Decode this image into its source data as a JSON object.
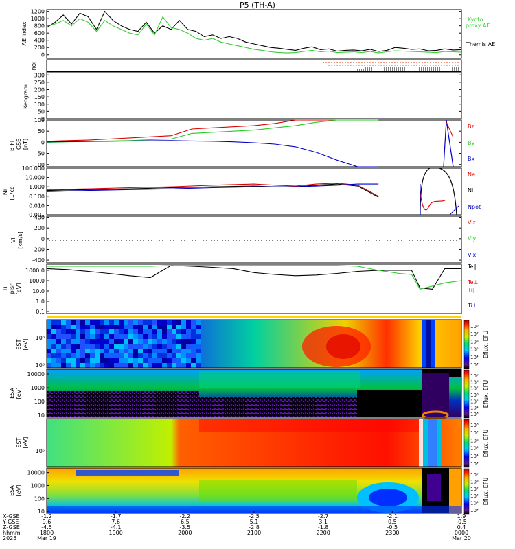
{
  "title": "P5 (TH-A)",
  "colors": {
    "black": "#000000",
    "red": "#dd0000",
    "green": "#22cc22",
    "blue": "#0000cc",
    "ae_green": "#33cc33",
    "yellow": "#ffd400"
  },
  "chart_data": [
    {
      "type": "line",
      "panel": "ae",
      "ylabel": "AE index",
      "ylim": [
        -100,
        1250
      ],
      "yticks": [
        "1200",
        "1000",
        "800",
        "600",
        "400",
        "200",
        "0"
      ],
      "ytick_values": [
        1200,
        1000,
        800,
        600,
        400,
        200,
        0
      ],
      "legend": [
        {
          "label": "Kyoto proxy AE",
          "color": "#33cc33"
        },
        {
          "label": "Themis AE",
          "color": "#000000"
        }
      ],
      "series": [
        {
          "name": "Themis AE",
          "color": "#000000",
          "x": [
            0,
            0.02,
            0.04,
            0.06,
            0.08,
            0.1,
            0.12,
            0.14,
            0.16,
            0.18,
            0.2,
            0.22,
            0.24,
            0.26,
            0.28,
            0.3,
            0.32,
            0.34,
            0.36,
            0.38,
            0.4,
            0.42,
            0.44,
            0.46,
            0.48,
            0.5,
            0.52,
            0.54,
            0.56,
            0.58,
            0.6,
            0.62,
            0.64,
            0.66,
            0.68,
            0.7,
            0.72,
            0.74,
            0.76,
            0.78,
            0.8,
            0.82,
            0.84,
            0.86,
            0.88,
            0.9,
            0.92,
            0.94,
            0.96,
            0.98,
            1.0
          ],
          "values": [
            750,
            900,
            1100,
            850,
            1150,
            1050,
            700,
            1200,
            950,
            800,
            700,
            650,
            900,
            600,
            800,
            700,
            950,
            700,
            650,
            500,
            550,
            450,
            500,
            450,
            350,
            300,
            250,
            200,
            180,
            150,
            120,
            180,
            220,
            140,
            160,
            100,
            120,
            130,
            110,
            150,
            90,
            120,
            200,
            180,
            150,
            160,
            110,
            120,
            160,
            130,
            140
          ]
        },
        {
          "name": "Kyoto proxy AE",
          "color": "#33cc33",
          "x": [
            0,
            0.02,
            0.04,
            0.06,
            0.08,
            0.1,
            0.12,
            0.14,
            0.16,
            0.18,
            0.2,
            0.22,
            0.24,
            0.26,
            0.28,
            0.3,
            0.32,
            0.34,
            0.36,
            0.38,
            0.4,
            0.42,
            0.44,
            0.46,
            0.48,
            0.5,
            0.52,
            0.54,
            0.56,
            0.58,
            0.6,
            0.62,
            0.64,
            0.66,
            0.68,
            0.7,
            0.72,
            0.74,
            0.76,
            0.78,
            0.8,
            0.82,
            0.84,
            0.86,
            0.88,
            0.9,
            0.92,
            0.94,
            0.96,
            0.98,
            1.0
          ],
          "values": [
            800,
            850,
            950,
            800,
            1000,
            900,
            650,
            950,
            800,
            700,
            600,
            550,
            850,
            550,
            1050,
            750,
            700,
            600,
            450,
            400,
            450,
            350,
            300,
            250,
            200,
            150,
            120,
            80,
            60,
            50,
            60,
            90,
            120,
            80,
            100,
            60,
            70,
            80,
            60,
            90,
            50,
            80,
            110,
            100,
            90,
            80,
            70,
            60,
            90,
            80,
            70
          ]
        }
      ]
    },
    {
      "type": "line",
      "panel": "roi",
      "ylabel": "ROI",
      "note": "dashed flag lines in the last quarter of the time range"
    },
    {
      "type": "heatmap",
      "panel": "keogram",
      "ylabel": "Keogram",
      "yticks": [
        "300",
        "250",
        "200",
        "150",
        "100",
        "50",
        "0"
      ],
      "ytick_values": [
        300,
        250,
        200,
        150,
        100,
        50,
        0
      ],
      "ylim": [
        0,
        320
      ]
    },
    {
      "type": "line",
      "panel": "bfield",
      "ylabel": "B FIT GSE [nT]",
      "ylim": [
        -110,
        100
      ],
      "yticks": [
        "100",
        "50",
        "0",
        "-50",
        "-100"
      ],
      "ytick_values": [
        100,
        50,
        0,
        -50,
        -100
      ],
      "legend": [
        {
          "label": "Bz",
          "color": "#dd0000"
        },
        {
          "label": "By",
          "color": "#22cc22"
        },
        {
          "label": "Bx",
          "color": "#0000cc"
        }
      ],
      "series": [
        {
          "name": "Bz",
          "color": "#dd0000",
          "x": [
            0,
            0.05,
            0.1,
            0.15,
            0.2,
            0.25,
            0.3,
            0.35,
            0.4,
            0.45,
            0.5,
            0.55,
            0.6,
            0.65,
            0.7,
            0.75,
            0.8
          ],
          "values": [
            5,
            8,
            10,
            15,
            20,
            25,
            30,
            60,
            65,
            70,
            75,
            85,
            100,
            100,
            100,
            100,
            100
          ]
        },
        {
          "name": "By",
          "color": "#22cc22",
          "x": [
            0,
            0.05,
            0.1,
            0.15,
            0.2,
            0.25,
            0.3,
            0.35,
            0.4,
            0.45,
            0.5,
            0.55,
            0.6,
            0.65,
            0.7,
            0.75,
            0.8
          ],
          "values": [
            0,
            2,
            4,
            6,
            8,
            12,
            15,
            40,
            45,
            50,
            55,
            65,
            75,
            90,
            100,
            100,
            100
          ]
        },
        {
          "name": "Bx",
          "color": "#0000cc",
          "x": [
            0,
            0.05,
            0.1,
            0.15,
            0.2,
            0.25,
            0.3,
            0.35,
            0.4,
            0.45,
            0.5,
            0.55,
            0.6,
            0.65,
            0.7,
            0.75,
            0.8
          ],
          "values": [
            2,
            3,
            4,
            5,
            6,
            7,
            8,
            6,
            5,
            2,
            -2,
            -8,
            -20,
            -45,
            -80,
            -110,
            -110
          ]
        }
      ]
    },
    {
      "type": "line",
      "panel": "density",
      "ylabel": "Ni [1/cc]",
      "scale": "log",
      "ylim_log10": [
        -3,
        2
      ],
      "yticks": [
        "100.000",
        "10.000",
        "1.000",
        "0.100",
        "0.010",
        "0.001"
      ],
      "ytick_values": [
        100,
        10,
        1,
        0.1,
        0.01,
        0.001
      ],
      "legend": [
        {
          "label": "Ne",
          "color": "#dd0000"
        },
        {
          "label": "Ni",
          "color": "#000000"
        },
        {
          "label": "Npot",
          "color": "#0000cc"
        }
      ],
      "series": [
        {
          "name": "Ne",
          "color": "#dd0000",
          "x": [
            0,
            0.1,
            0.2,
            0.3,
            0.4,
            0.5,
            0.55,
            0.6,
            0.65,
            0.7,
            0.75,
            0.8,
            0.82,
            0.84,
            0.86,
            0.9,
            0.95,
            1.0
          ],
          "values": [
            0.5,
            0.6,
            0.8,
            1.0,
            1.5,
            2.0,
            1.5,
            1.2,
            2.0,
            2.5,
            1.5,
            0.1,
            0.03,
            0.06,
            0.4,
            0.02,
            0.5,
            0.2
          ]
        },
        {
          "name": "Ni",
          "color": "#000000",
          "x": [
            0,
            0.1,
            0.2,
            0.3,
            0.4,
            0.5,
            0.55,
            0.6,
            0.65,
            0.7,
            0.75,
            0.8,
            0.82,
            0.84,
            0.86,
            0.9,
            0.95,
            1.0
          ],
          "values": [
            0.4,
            0.5,
            0.6,
            0.8,
            1.0,
            1.2,
            1.0,
            1.0,
            1.5,
            2.0,
            1.2,
            0.08,
            0.04,
            0.05,
            0.3,
            100,
            100,
            1.0
          ]
        },
        {
          "name": "Npot",
          "color": "#0000cc",
          "x": [
            0,
            0.1,
            0.2,
            0.3,
            0.4,
            0.5,
            0.55,
            0.6,
            0.65,
            0.7,
            0.75,
            0.8,
            0.82,
            0.84,
            0.86,
            0.9,
            0.95,
            1.0
          ],
          "values": [
            0.3,
            0.4,
            0.5,
            0.6,
            0.8,
            1.0,
            1.0,
            1.0,
            1.2,
            1.5,
            2.0,
            2.0,
            2.0,
            2.0,
            2.0,
            2.0,
            0.002,
            0.01
          ]
        }
      ]
    },
    {
      "type": "line",
      "panel": "velocity",
      "ylabel": "Vi [km/s]",
      "ylim": [
        -450,
        420
      ],
      "yticks": [
        "400",
        "200",
        "0",
        "-200",
        "-400"
      ],
      "ytick_values": [
        400,
        200,
        0,
        -200,
        -400
      ],
      "legend": [
        {
          "label": "Viz",
          "color": "#dd0000"
        },
        {
          "label": "Viy",
          "color": "#22cc22"
        },
        {
          "label": "Vix",
          "color": "#0000cc"
        }
      ]
    },
    {
      "type": "line",
      "panel": "temperature",
      "ylabel": "Ti plsr [eV]",
      "scale": "log",
      "ylim_log10": [
        -1.2,
        3.6
      ],
      "yticks": [
        "1000.0",
        "100.0",
        "10.0",
        "1.0",
        "0.1"
      ],
      "ytick_values": [
        1000,
        100,
        10,
        1,
        0.1
      ],
      "legend": [
        {
          "label": "Te∥",
          "color": "#000000"
        },
        {
          "label": "Te⊥",
          "color": "#dd0000"
        },
        {
          "label": "Ti∥",
          "color": "#22cc22"
        },
        {
          "label": "Ti⊥",
          "color": "#0000cc"
        }
      ],
      "series": [
        {
          "name": "Te",
          "color": "#000000",
          "x": [
            0,
            0.05,
            0.1,
            0.15,
            0.2,
            0.25,
            0.3,
            0.35,
            0.4,
            0.45,
            0.5,
            0.55,
            0.6,
            0.65,
            0.7,
            0.75,
            0.8,
            0.85,
            0.88,
            0.9,
            0.93,
            0.96,
            1.0
          ],
          "values": [
            1500,
            1200,
            800,
            500,
            300,
            200,
            3000,
            2500,
            2000,
            1500,
            600,
            400,
            300,
            350,
            500,
            800,
            1000,
            1000,
            1000,
            20,
            15,
            1500,
            1500
          ]
        },
        {
          "name": "Ti",
          "color": "#22cc22",
          "x": [
            0,
            0.05,
            0.1,
            0.15,
            0.2,
            0.25,
            0.3,
            0.35,
            0.4,
            0.45,
            0.5,
            0.55,
            0.6,
            0.65,
            0.7,
            0.75,
            0.8,
            0.85,
            0.88,
            0.9,
            0.93,
            0.96,
            1.0
          ],
          "values": [
            2500,
            2500,
            2500,
            2500,
            2500,
            2500,
            3000,
            3000,
            3000,
            3000,
            3000,
            3000,
            3000,
            3000,
            3000,
            2500,
            1000,
            500,
            400,
            15,
            30,
            60,
            100
          ]
        }
      ]
    },
    {
      "type": "heatmap",
      "panel": "sst_ion",
      "ylabel": "SST [eV]",
      "yticks": [
        "10⁶",
        "10⁵"
      ],
      "colorbar": {
        "label": "Eflux, EFU",
        "ticks": [
          "10⁸",
          "10⁷",
          "10⁶",
          "10⁵",
          "10⁴",
          "10³"
        ]
      }
    },
    {
      "type": "heatmap",
      "panel": "esa_ion",
      "ylabel": "ESA [eV]",
      "yticks": [
        "10000",
        "1000",
        "100",
        "10"
      ],
      "ytick_values": [
        10000,
        1000,
        100,
        10
      ],
      "colorbar": {
        "label": "Eflux, EFU",
        "ticks": [
          "10⁹",
          "10⁸",
          "10⁷",
          "10⁶",
          "10⁵",
          "10⁴",
          "10³"
        ]
      }
    },
    {
      "type": "heatmap",
      "panel": "sst_elec",
      "ylabel": "SST [eV]",
      "yticks": [
        "10⁵"
      ],
      "colorbar": {
        "label": "Eflux, EFU",
        "ticks": [
          "10⁸",
          "10⁷",
          "10⁶",
          "10⁵",
          "10⁴",
          "10³"
        ]
      }
    },
    {
      "type": "heatmap",
      "panel": "esa_elec",
      "ylabel": "ESA [eV]",
      "yticks": [
        "10000",
        "1000",
        "100",
        "10"
      ],
      "ytick_values": [
        10000,
        1000,
        100,
        10
      ],
      "colorbar": {
        "label": "Eflux, EFU",
        "ticks": [
          "10⁹",
          "10⁸",
          "10⁷",
          "10⁶",
          "10⁵",
          "10⁴"
        ]
      }
    }
  ],
  "xaxis": {
    "row_labels": [
      "X-GSE",
      "Y-GSE",
      "Z-GSE",
      "hhmm",
      "2025"
    ],
    "ticks": [
      {
        "x": "-1.2",
        "y": "9.6",
        "z": "-4.5",
        "hhmm": "1800",
        "date": "Mar 19"
      },
      {
        "x": "-1.7",
        "y": "7.6",
        "z": "-4.1",
        "hhmm": "1900",
        "date": ""
      },
      {
        "x": "-2.2",
        "y": "6.5",
        "z": "-3.5",
        "hhmm": "2000",
        "date": ""
      },
      {
        "x": "-2.5",
        "y": "5.1",
        "z": "-2.8",
        "hhmm": "2100",
        "date": ""
      },
      {
        "x": "-2.7",
        "y": "3.1",
        "z": "-1.8",
        "hhmm": "2200",
        "date": ""
      },
      {
        "x": "-2.1",
        "y": "0.5",
        "z": "-0.5",
        "hhmm": "2300",
        "date": ""
      },
      {
        "x": "1.9",
        "y": "-0.5",
        "z": "0.4",
        "hhmm": "0000",
        "date": "Mar 20"
      }
    ]
  }
}
